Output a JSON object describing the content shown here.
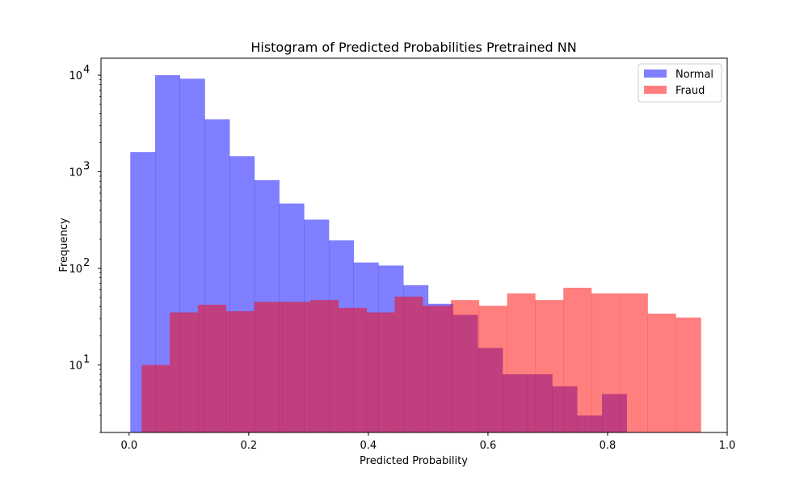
{
  "chart_data": {
    "type": "bar",
    "subtype": "overlaid-histogram",
    "title": "Histogram of Predicted Probabilities Pretrained NN",
    "xlabel": "Predicted Probability",
    "ylabel": "Frequency",
    "xlim": [
      -0.047,
      1.0
    ],
    "ylim": [
      2,
      15000
    ],
    "yscale": "log",
    "x_ticks": [
      {
        "value": 0.0,
        "label": "0.0"
      },
      {
        "value": 0.2,
        "label": "0.2"
      },
      {
        "value": 0.4,
        "label": "0.4"
      },
      {
        "value": 0.6,
        "label": "0.6"
      },
      {
        "value": 0.8,
        "label": "0.8"
      },
      {
        "value": 1.0,
        "label": "1.0"
      }
    ],
    "y_ticks": [
      {
        "value": 10,
        "base": "10",
        "exp": "1"
      },
      {
        "value": 100,
        "base": "10",
        "exp": "2"
      },
      {
        "value": 1000,
        "base": "10",
        "exp": "3"
      },
      {
        "value": 10000,
        "base": "10",
        "exp": "4"
      }
    ],
    "grid": false,
    "legend": "top-right",
    "series": [
      {
        "name": "Normal",
        "color": "#0000ff",
        "alpha": 0.5,
        "bins": [
          [
            0.002,
            0.0435,
            1600
          ],
          [
            0.0435,
            0.085,
            10000
          ],
          [
            0.085,
            0.1265,
            9200
          ],
          [
            0.1265,
            0.168,
            3500
          ],
          [
            0.168,
            0.2095,
            1450
          ],
          [
            0.2095,
            0.251,
            820
          ],
          [
            0.251,
            0.2925,
            470
          ],
          [
            0.2925,
            0.334,
            320
          ],
          [
            0.334,
            0.3755,
            195
          ],
          [
            0.3755,
            0.417,
            115
          ],
          [
            0.417,
            0.4585,
            107
          ],
          [
            0.4585,
            0.5,
            67
          ],
          [
            0.5,
            0.5415,
            43
          ],
          [
            0.5415,
            0.583,
            33
          ],
          [
            0.583,
            0.6245,
            15
          ],
          [
            0.6245,
            0.666,
            8
          ],
          [
            0.666,
            0.7075,
            8
          ],
          [
            0.7075,
            0.749,
            6
          ],
          [
            0.749,
            0.7905,
            3
          ],
          [
            0.7905,
            0.832,
            5
          ]
        ]
      },
      {
        "name": "Fraud",
        "color": "#ff0000",
        "alpha": 0.5,
        "bins": [
          [
            0.021,
            0.068,
            10
          ],
          [
            0.068,
            0.115,
            35
          ],
          [
            0.115,
            0.162,
            42
          ],
          [
            0.162,
            0.209,
            36
          ],
          [
            0.209,
            0.256,
            45
          ],
          [
            0.256,
            0.303,
            45
          ],
          [
            0.303,
            0.35,
            47
          ],
          [
            0.35,
            0.397,
            39
          ],
          [
            0.397,
            0.444,
            35
          ],
          [
            0.444,
            0.491,
            51
          ],
          [
            0.491,
            0.538,
            41
          ],
          [
            0.538,
            0.585,
            47
          ],
          [
            0.585,
            0.632,
            41
          ],
          [
            0.632,
            0.679,
            55
          ],
          [
            0.679,
            0.726,
            47
          ],
          [
            0.726,
            0.773,
            63
          ],
          [
            0.773,
            0.82,
            55
          ],
          [
            0.82,
            0.867,
            55
          ],
          [
            0.867,
            0.914,
            34
          ],
          [
            0.914,
            0.956,
            31
          ]
        ]
      }
    ]
  }
}
